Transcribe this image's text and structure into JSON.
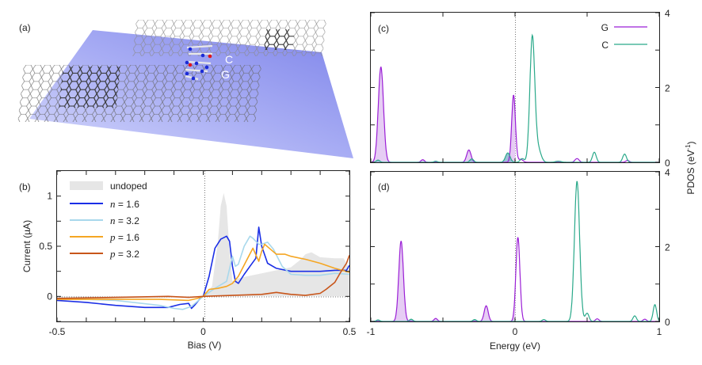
{
  "panels": {
    "a": {
      "label": "(a)",
      "molecule_labels": [
        "C",
        "G"
      ]
    }
  },
  "chart_data": [
    {
      "id": "b",
      "type": "line",
      "panel_label": "(b)",
      "xlabel": "Bias (V)",
      "ylabel": "Current (µA)",
      "xlim": [
        -0.5,
        0.5
      ],
      "ylim": [
        -0.25,
        1.25
      ],
      "xticks": [
        -0.5,
        0,
        0.5
      ],
      "xtick_labels": [
        "-0.5",
        "0",
        "0.5"
      ],
      "yticks": [
        0,
        0.5,
        1
      ],
      "ytick_labels": [
        "0",
        "0.5",
        "1"
      ],
      "legend_position": "top-left",
      "series": [
        {
          "name": "undoped",
          "kind": "area",
          "color": "#e6e6e6",
          "x": [
            -0.5,
            -0.3,
            -0.1,
            -0.02,
            0,
            0.03,
            0.05,
            0.06,
            0.07,
            0.08,
            0.09,
            0.1,
            0.12,
            0.15,
            0.2,
            0.25,
            0.3,
            0.33,
            0.35,
            0.37,
            0.4,
            0.45,
            0.48,
            0.5
          ],
          "y": [
            -0.03,
            -0.02,
            -0.01,
            -0.005,
            0,
            0.1,
            0.55,
            0.9,
            1.03,
            0.9,
            0.45,
            0.15,
            0.18,
            0.2,
            0.23,
            0.26,
            0.29,
            0.36,
            0.42,
            0.44,
            0.39,
            0.38,
            0.38,
            0.28
          ]
        },
        {
          "name": "n = 1.6",
          "var": "n",
          "val": "1.6",
          "kind": "line",
          "color": "#1a2ee6",
          "x": [
            -0.5,
            -0.4,
            -0.3,
            -0.2,
            -0.12,
            -0.08,
            -0.05,
            -0.04,
            -0.03,
            -0.01,
            0,
            0.02,
            0.04,
            0.06,
            0.08,
            0.09,
            0.1,
            0.11,
            0.12,
            0.14,
            0.16,
            0.18,
            0.19,
            0.2,
            0.22,
            0.25,
            0.3,
            0.35,
            0.4,
            0.45,
            0.49,
            0.5
          ],
          "y": [
            -0.04,
            -0.06,
            -0.09,
            -0.11,
            -0.11,
            -0.08,
            -0.07,
            -0.12,
            -0.09,
            -0.02,
            0.0,
            0.2,
            0.48,
            0.57,
            0.6,
            0.55,
            0.3,
            0.15,
            0.13,
            0.22,
            0.3,
            0.38,
            0.69,
            0.5,
            0.33,
            0.28,
            0.25,
            0.25,
            0.25,
            0.26,
            0.26,
            0.31
          ]
        },
        {
          "name": "n = 3.2",
          "var": "n",
          "val": "3.2",
          "kind": "line",
          "color": "#a8d8ec",
          "x": [
            -0.5,
            -0.3,
            -0.15,
            -0.1,
            -0.07,
            -0.04,
            -0.02,
            0,
            0.04,
            0.08,
            0.1,
            0.11,
            0.12,
            0.14,
            0.16,
            0.17,
            0.19,
            0.2,
            0.22,
            0.24,
            0.27,
            0.3,
            0.35,
            0.4,
            0.45,
            0.5
          ],
          "y": [
            -0.02,
            -0.04,
            -0.09,
            -0.12,
            -0.13,
            -0.1,
            -0.05,
            0,
            0.08,
            0.15,
            0.4,
            0.3,
            0.32,
            0.5,
            0.6,
            0.58,
            0.52,
            0.52,
            0.54,
            0.47,
            0.3,
            0.22,
            0.21,
            0.21,
            0.23,
            0.22
          ]
        },
        {
          "name": "p = 1.6",
          "var": "p",
          "val": "1.6",
          "kind": "line",
          "color": "#f5a623",
          "x": [
            -0.5,
            -0.3,
            -0.15,
            -0.05,
            -0.02,
            0,
            0.02,
            0.05,
            0.08,
            0.1,
            0.12,
            0.15,
            0.17,
            0.19,
            0.2,
            0.21,
            0.23,
            0.25,
            0.28,
            0.3,
            0.35,
            0.4,
            0.45,
            0.5
          ],
          "y": [
            -0.03,
            -0.03,
            -0.03,
            -0.04,
            -0.02,
            0,
            0.07,
            0.08,
            0.1,
            0.13,
            0.2,
            0.37,
            0.48,
            0.35,
            0.45,
            0.52,
            0.47,
            0.42,
            0.42,
            0.4,
            0.37,
            0.33,
            0.28,
            0.24
          ]
        },
        {
          "name": "p = 3.2",
          "var": "p",
          "val": "3.2",
          "kind": "line",
          "color": "#c8551a",
          "x": [
            -0.5,
            -0.3,
            -0.12,
            -0.05,
            0,
            0.1,
            0.2,
            0.25,
            0.3,
            0.35,
            0.4,
            0.42,
            0.45,
            0.47,
            0.49,
            0.5
          ],
          "y": [
            -0.02,
            -0.01,
            0.0,
            -0.01,
            0,
            0.01,
            0.02,
            0.04,
            0.02,
            0.01,
            0.03,
            0.07,
            0.14,
            0.24,
            0.33,
            0.41
          ]
        }
      ]
    },
    {
      "id": "c",
      "type": "line",
      "panel_label": "(c)",
      "xlim": [
        -1,
        1
      ],
      "ylim": [
        0,
        4
      ],
      "yticks": [
        0,
        2,
        4
      ],
      "ytick_labels": [
        "0",
        "2",
        "4"
      ],
      "legend_position": "top-right",
      "series": [
        {
          "name": "G",
          "color": "#9b1fd6",
          "fill": "#e2c4f2",
          "peaks": [
            [
              -0.93,
              2.55,
              0.018
            ],
            [
              -0.64,
              0.07,
              0.012
            ],
            [
              -0.32,
              0.33,
              0.015
            ],
            [
              -0.01,
              1.8,
              0.013
            ],
            [
              0.04,
              0.08,
              0.015
            ],
            [
              0.43,
              0.1,
              0.014
            ],
            [
              0.78,
              0.05,
              0.012
            ]
          ]
        },
        {
          "name": "C",
          "color": "#2aa98a",
          "fill": "#7fa9c9",
          "peaks": [
            [
              -0.95,
              0.06,
              0.012
            ],
            [
              -0.55,
              0.03,
              0.012
            ],
            [
              -0.3,
              0.09,
              0.013
            ],
            [
              -0.05,
              0.25,
              0.016
            ],
            [
              0.05,
              0.1,
              0.014
            ],
            [
              0.12,
              3.35,
              0.017
            ],
            [
              0.16,
              0.35,
              0.02
            ],
            [
              0.3,
              0.03,
              0.02
            ],
            [
              0.55,
              0.27,
              0.013
            ],
            [
              0.76,
              0.22,
              0.013
            ]
          ]
        }
      ]
    },
    {
      "id": "d",
      "type": "line",
      "panel_label": "(d)",
      "xlabel": "Energy (eV)",
      "xlim": [
        -1,
        1
      ],
      "ylim": [
        0,
        4
      ],
      "xticks": [
        -1,
        0,
        1
      ],
      "xtick_labels": [
        "-1",
        "0",
        "1"
      ],
      "yticks": [
        0,
        2,
        4
      ],
      "ytick_labels": [
        "0",
        "2",
        "4"
      ],
      "series": [
        {
          "name": "G",
          "color": "#9b1fd6",
          "fill": "#e2c4f2",
          "peaks": [
            [
              -0.79,
              2.15,
              0.016
            ],
            [
              -0.55,
              0.08,
              0.012
            ],
            [
              -0.2,
              0.42,
              0.014
            ],
            [
              0.02,
              2.25,
              0.014
            ],
            [
              0.57,
              0.07,
              0.012
            ],
            [
              0.9,
              0.06,
              0.012
            ]
          ]
        },
        {
          "name": "C",
          "color": "#2aa98a",
          "fill": "#7fa9c9",
          "peaks": [
            [
              -0.95,
              0.04,
              0.012
            ],
            [
              -0.72,
              0.06,
              0.012
            ],
            [
              -0.28,
              0.05,
              0.012
            ],
            [
              0.2,
              0.05,
              0.012
            ],
            [
              0.43,
              3.75,
              0.018
            ],
            [
              0.5,
              0.22,
              0.013
            ],
            [
              0.83,
              0.15,
              0.012
            ],
            [
              0.97,
              0.45,
              0.012
            ]
          ]
        }
      ]
    }
  ],
  "shared_ylabel_right": "PDOS (eV",
  "shared_ylabel_sup": "-1",
  "shared_ylabel_close": ")"
}
